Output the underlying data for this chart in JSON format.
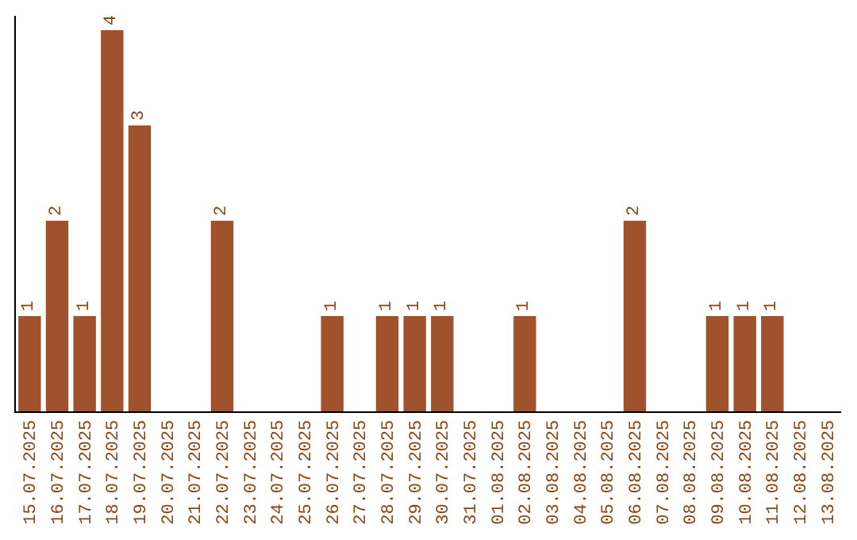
{
  "chart_data": {
    "type": "bar",
    "categories": [
      "15.07.2025",
      "16.07.2025",
      "17.07.2025",
      "18.07.2025",
      "19.07.2025",
      "20.07.2025",
      "21.07.2025",
      "22.07.2025",
      "23.07.2025",
      "24.07.2025",
      "25.07.2025",
      "26.07.2025",
      "27.07.2025",
      "28.07.2025",
      "29.07.2025",
      "30.07.2025",
      "31.07.2025",
      "01.08.2025",
      "02.08.2025",
      "03.08.2025",
      "04.08.2025",
      "05.08.2025",
      "06.08.2025",
      "07.08.2025",
      "08.08.2025",
      "09.08.2025",
      "10.08.2025",
      "11.08.2025",
      "12.08.2025",
      "13.08.2025"
    ],
    "values": [
      1,
      2,
      1,
      4,
      3,
      0,
      0,
      2,
      0,
      0,
      0,
      1,
      0,
      1,
      1,
      1,
      0,
      0,
      1,
      0,
      0,
      0,
      2,
      0,
      0,
      1,
      1,
      1,
      0,
      0
    ],
    "value_labels": [
      "1",
      "2",
      "1",
      "4",
      "3",
      null,
      null,
      "2",
      null,
      null,
      null,
      "1",
      null,
      "1",
      "1",
      "1",
      null,
      null,
      "1",
      null,
      null,
      null,
      "2",
      null,
      null,
      "1",
      "1",
      "1",
      null,
      null
    ],
    "color": "#a0522d",
    "ylim": [
      0,
      4.15
    ],
    "tick_labels": "x"
  }
}
